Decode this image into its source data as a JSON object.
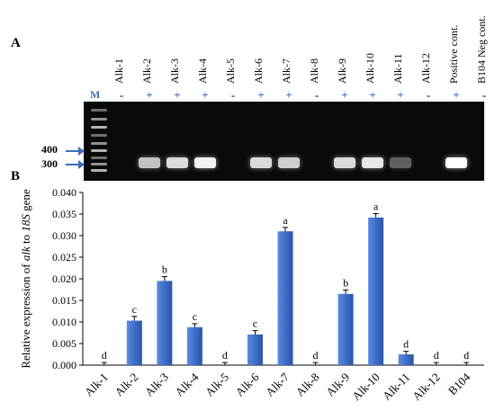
{
  "panel_a_label": "A",
  "panel_b_label": "B",
  "gel": {
    "marker_lane_label": "M",
    "lanes": [
      {
        "label": "Alk-1",
        "sign": "-",
        "band": 0
      },
      {
        "label": "Alk-2",
        "sign": "+",
        "band": 0.75
      },
      {
        "label": "Alk-3",
        "sign": "+",
        "band": 0.85
      },
      {
        "label": "Alk-4",
        "sign": "+",
        "band": 0.95
      },
      {
        "label": "Alk-5",
        "sign": "-",
        "band": 0
      },
      {
        "label": "Alk-6",
        "sign": "+",
        "band": 0.85
      },
      {
        "label": "Alk-7",
        "sign": "+",
        "band": 0.8
      },
      {
        "label": "Alk-8",
        "sign": "-",
        "band": 0
      },
      {
        "label": "Alk-9",
        "sign": "+",
        "band": 0.85
      },
      {
        "label": "Alk-10",
        "sign": "+",
        "band": 0.9
      },
      {
        "label": "Alk-11",
        "sign": "+",
        "band": 0.35
      },
      {
        "label": "Alk-12",
        "sign": "-",
        "band": 0
      },
      {
        "label": "Positive cont.",
        "sign": "+",
        "band": 1.0
      },
      {
        "label": "B104  Neg cont.",
        "sign": "-",
        "band": 0
      }
    ],
    "markers": [
      "400",
      "300"
    ]
  },
  "chart_data": {
    "type": "bar",
    "ylabel_parts": [
      "Relative expression of ",
      "alk",
      " to ",
      "18S",
      " gene"
    ],
    "ylim": [
      0,
      0.04
    ],
    "yticks": [
      "0.000",
      "0.005",
      "0.010",
      "0.015",
      "0.020",
      "0.025",
      "0.030",
      "0.035",
      "0.040"
    ],
    "categories": [
      "Alk-1",
      "Alk-2",
      "Alk-3",
      "Alk-4",
      "Alk-5",
      "Alk-6",
      "Alk-7",
      "Alk-8",
      "Alk-9",
      "Alk-10",
      "Alk-11",
      "Alk-12",
      "B104"
    ],
    "values": [
      0.0,
      0.0103,
      0.0195,
      0.0088,
      0.0,
      0.0071,
      0.031,
      0.0,
      0.0165,
      0.0342,
      0.0025,
      0.0,
      0.0
    ],
    "errors": [
      0.0006,
      0.001,
      0.001,
      0.0008,
      0.0006,
      0.0009,
      0.0009,
      0.0006,
      0.0009,
      0.0009,
      0.0007,
      0.0006,
      0.0006
    ],
    "letters": [
      "d",
      "c",
      "b",
      "c",
      "d",
      "c",
      "a",
      "d",
      "b",
      "a",
      "d",
      "d",
      "d"
    ],
    "bar_color": "#3e6ec8"
  }
}
